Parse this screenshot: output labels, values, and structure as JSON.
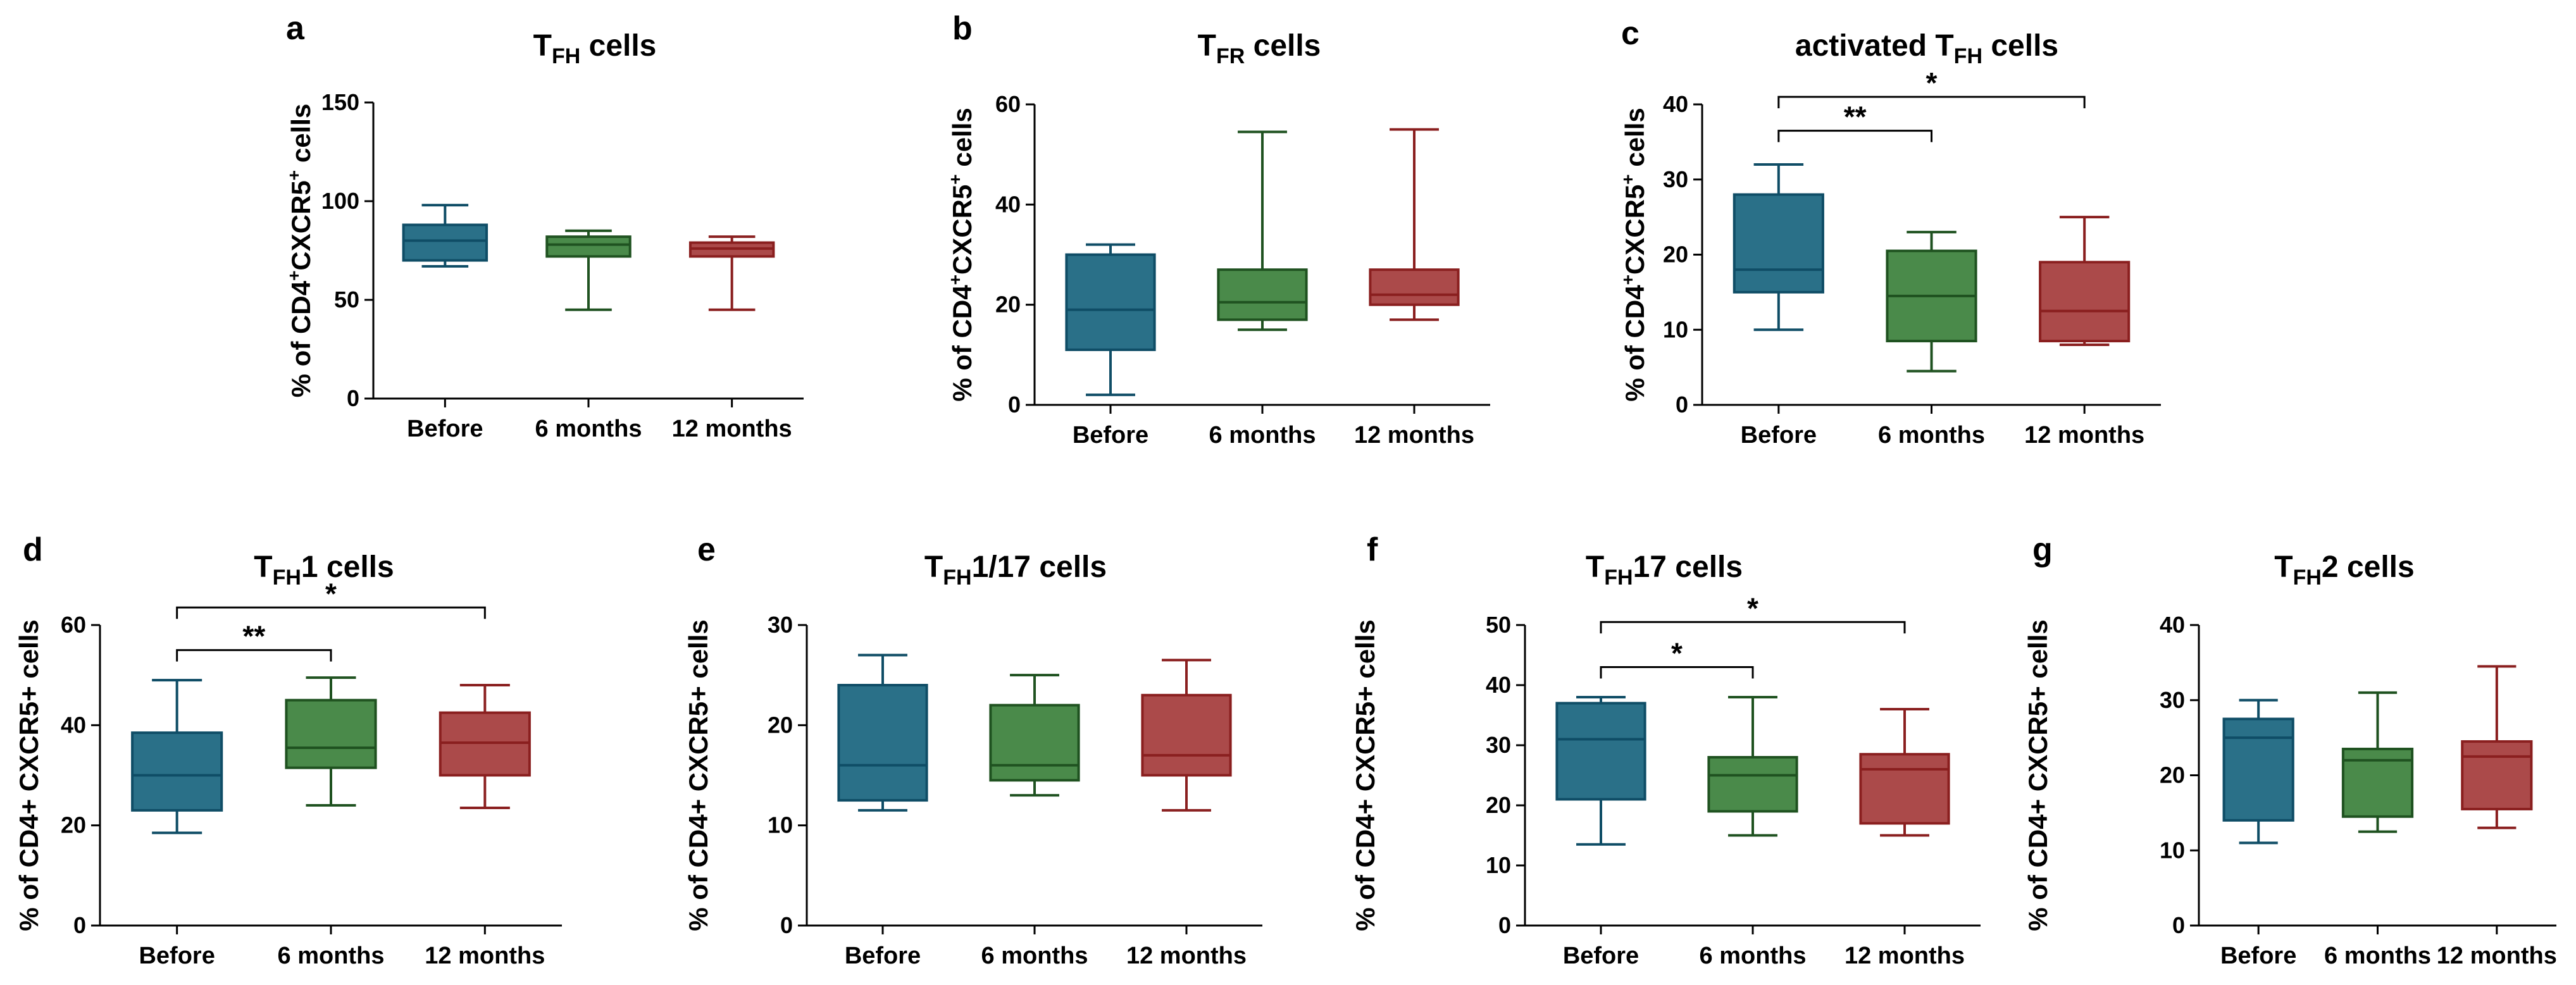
{
  "chart_data": [
    {
      "type": "box",
      "panel_label": "a",
      "title": {
        "pre": "T",
        "sub": "FH",
        "post": " cells"
      },
      "ylabel": {
        "parts": [
          [
            "% of CD4",
            ""
          ],
          [
            "+",
            "sup"
          ],
          [
            "CXCR5",
            ""
          ],
          [
            "+",
            "sup"
          ],
          [
            " cells",
            ""
          ]
        ]
      },
      "ylim": [
        0,
        150
      ],
      "yticks": [
        0,
        50,
        100,
        150
      ],
      "categories": [
        "Before",
        "6 months",
        "12 months"
      ],
      "boxes": [
        {
          "min": 67,
          "q1": 70,
          "median": 80,
          "q3": 88,
          "max": 98
        },
        {
          "min": 45,
          "q1": 72,
          "median": 78,
          "q3": 82,
          "max": 85
        },
        {
          "min": 45,
          "q1": 72,
          "median": 76,
          "q3": 79,
          "max": 82
        }
      ],
      "significance": []
    },
    {
      "type": "box",
      "panel_label": "b",
      "title": {
        "pre": "T",
        "sub": "FR",
        "post": " cells"
      },
      "ylabel": {
        "parts": [
          [
            "% of CD4",
            ""
          ],
          [
            "+",
            "sup"
          ],
          [
            "CXCR5",
            ""
          ],
          [
            "+",
            "sup"
          ],
          [
            " cells",
            ""
          ]
        ]
      },
      "ylim": [
        0,
        60
      ],
      "yticks": [
        0,
        20,
        40,
        60
      ],
      "categories": [
        "Before",
        "6 months",
        "12 months"
      ],
      "boxes": [
        {
          "min": 2,
          "q1": 11,
          "median": 19,
          "q3": 30,
          "max": 32
        },
        {
          "min": 15,
          "q1": 17,
          "median": 20.5,
          "q3": 27,
          "max": 54.5
        },
        {
          "min": 17,
          "q1": 20,
          "median": 22,
          "q3": 27,
          "max": 55
        }
      ],
      "significance": []
    },
    {
      "type": "box",
      "panel_label": "c",
      "title": {
        "pre": "activated T",
        "sub": "FH",
        "post": " cells"
      },
      "ylabel": {
        "parts": [
          [
            "% of CD4",
            ""
          ],
          [
            "+",
            "sup"
          ],
          [
            "CXCR5",
            ""
          ],
          [
            "+",
            "sup"
          ],
          [
            " cells",
            ""
          ]
        ]
      },
      "ylim": [
        0,
        40
      ],
      "yticks": [
        0,
        10,
        20,
        30,
        40
      ],
      "categories": [
        "Before",
        "6 months",
        "12 months"
      ],
      "boxes": [
        {
          "min": 10,
          "q1": 15,
          "median": 18,
          "q3": 28,
          "max": 32
        },
        {
          "min": 4.5,
          "q1": 8.5,
          "median": 14.5,
          "q3": 20.5,
          "max": 23
        },
        {
          "min": 8,
          "q1": 8.5,
          "median": 12.5,
          "q3": 19,
          "max": 25
        }
      ],
      "significance": [
        {
          "from": 0,
          "to": 1,
          "label": "**",
          "y": 36.5
        },
        {
          "from": 0,
          "to": 2,
          "label": "*",
          "y": 41
        }
      ]
    },
    {
      "type": "box",
      "panel_label": "d",
      "title": {
        "pre": "T",
        "sub": "FH",
        "post": "1 cells"
      },
      "ylabel": {
        "parts": [
          [
            "% of CD4+ CXCR5+ cells",
            ""
          ]
        ]
      },
      "ylim": [
        0,
        60
      ],
      "yticks": [
        0,
        20,
        40,
        60
      ],
      "categories": [
        "Before",
        "6 months",
        "12 months"
      ],
      "boxes": [
        {
          "min": 18.5,
          "q1": 23,
          "median": 30,
          "q3": 38.5,
          "max": 49
        },
        {
          "min": 24,
          "q1": 31.5,
          "median": 35.5,
          "q3": 45,
          "max": 49.5
        },
        {
          "min": 23.5,
          "q1": 30,
          "median": 36.5,
          "q3": 42.5,
          "max": 48
        }
      ],
      "significance": [
        {
          "from": 0,
          "to": 1,
          "label": "**",
          "y": 55
        },
        {
          "from": 0,
          "to": 2,
          "label": "*",
          "y": 63.5
        }
      ]
    },
    {
      "type": "box",
      "panel_label": "e",
      "title": {
        "pre": "T",
        "sub": "FH",
        "post": "1/17 cells"
      },
      "ylabel": {
        "parts": [
          [
            "% of CD4+ CXCR5+ cells",
            ""
          ]
        ]
      },
      "ylim": [
        0,
        30
      ],
      "yticks": [
        0,
        10,
        20,
        30
      ],
      "categories": [
        "Before",
        "6 months",
        "12 months"
      ],
      "boxes": [
        {
          "min": 11.5,
          "q1": 12.5,
          "median": 16,
          "q3": 24,
          "max": 27
        },
        {
          "min": 13,
          "q1": 14.5,
          "median": 16,
          "q3": 22,
          "max": 25
        },
        {
          "min": 11.5,
          "q1": 15,
          "median": 17,
          "q3": 23,
          "max": 26.5
        }
      ],
      "significance": []
    },
    {
      "type": "box",
      "panel_label": "f",
      "title": {
        "pre": "T",
        "sub": "FH",
        "post": "17 cells"
      },
      "ylabel": {
        "parts": [
          [
            "% of CD4+ CXCR5+ cells",
            ""
          ]
        ]
      },
      "ylim": [
        0,
        50
      ],
      "yticks": [
        0,
        10,
        20,
        30,
        40,
        50
      ],
      "categories": [
        "Before",
        "6 months",
        "12 months"
      ],
      "boxes": [
        {
          "min": 13.5,
          "q1": 21,
          "median": 31,
          "q3": 37,
          "max": 38
        },
        {
          "min": 15,
          "q1": 19,
          "median": 25,
          "q3": 28,
          "max": 38
        },
        {
          "min": 15,
          "q1": 17,
          "median": 26,
          "q3": 28.5,
          "max": 36
        }
      ],
      "significance": [
        {
          "from": 0,
          "to": 1,
          "label": "*",
          "y": 43
        },
        {
          "from": 0,
          "to": 2,
          "label": "*",
          "y": 50.5
        }
      ]
    },
    {
      "type": "box",
      "panel_label": "g",
      "title": {
        "pre": "T",
        "sub": "FH",
        "post": "2 cells"
      },
      "ylabel": {
        "parts": [
          [
            "% of CD4+ CXCR5+ cells",
            ""
          ]
        ]
      },
      "ylim": [
        0,
        40
      ],
      "yticks": [
        0,
        10,
        20,
        30,
        40
      ],
      "categories": [
        "Before",
        "6 months",
        "12 months"
      ],
      "boxes": [
        {
          "min": 11,
          "q1": 14,
          "median": 25,
          "q3": 27.5,
          "max": 30
        },
        {
          "min": 12.5,
          "q1": 14.5,
          "median": 22,
          "q3": 23.5,
          "max": 31
        },
        {
          "min": 13,
          "q1": 15.5,
          "median": 22.5,
          "q3": 24.5,
          "max": 34.5
        }
      ],
      "significance": []
    }
  ],
  "colors": {
    "fills": [
      "#2a7088",
      "#4a8a4a",
      "#ab4a4a"
    ],
    "strokes": [
      "#0f4d66",
      "#1f5220",
      "#8a1f1f"
    ],
    "axis": "#000000"
  }
}
